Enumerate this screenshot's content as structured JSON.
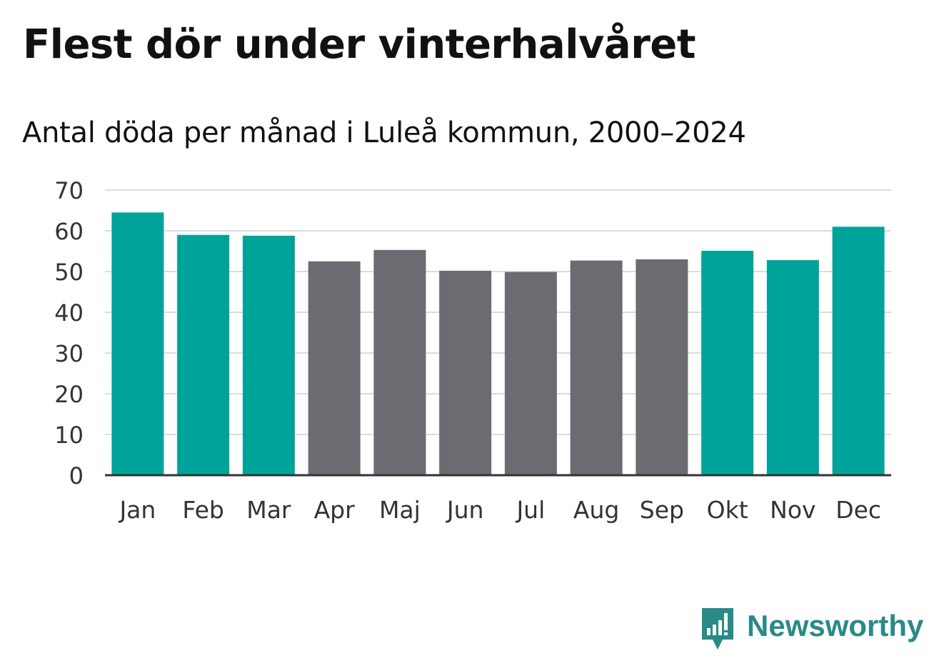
{
  "header": {
    "title": "Flest dör under vinterhalvåret"
  },
  "chart_data": {
    "type": "bar",
    "title": "Flest dör under vinterhalvåret",
    "subtitle": "Antal döda per månad i Luleå kommun, 2000–2024",
    "xlabel": "",
    "ylabel": "",
    "categories": [
      "Jan",
      "Feb",
      "Mar",
      "Apr",
      "Maj",
      "Jun",
      "Jul",
      "Aug",
      "Sep",
      "Okt",
      "Nov",
      "Dec"
    ],
    "values": [
      64.5,
      59.0,
      58.8,
      52.5,
      55.3,
      50.2,
      49.9,
      52.7,
      53.0,
      55.1,
      52.8,
      61.0
    ],
    "highlight": [
      true,
      true,
      true,
      false,
      false,
      false,
      false,
      false,
      false,
      true,
      true,
      true
    ],
    "ylim": [
      0,
      70
    ],
    "yticks": [
      0,
      10,
      20,
      30,
      40,
      50,
      60,
      70
    ],
    "grid": true,
    "colors": {
      "highlight": "#00a39a",
      "normal": "#6c6b72",
      "grid": "#dcdcdc",
      "axis": "#333333",
      "text": "#333333"
    }
  },
  "branding": {
    "name": "Newsworthy",
    "icon": "newsworthy-logo-icon",
    "color": "#2a8a86"
  }
}
